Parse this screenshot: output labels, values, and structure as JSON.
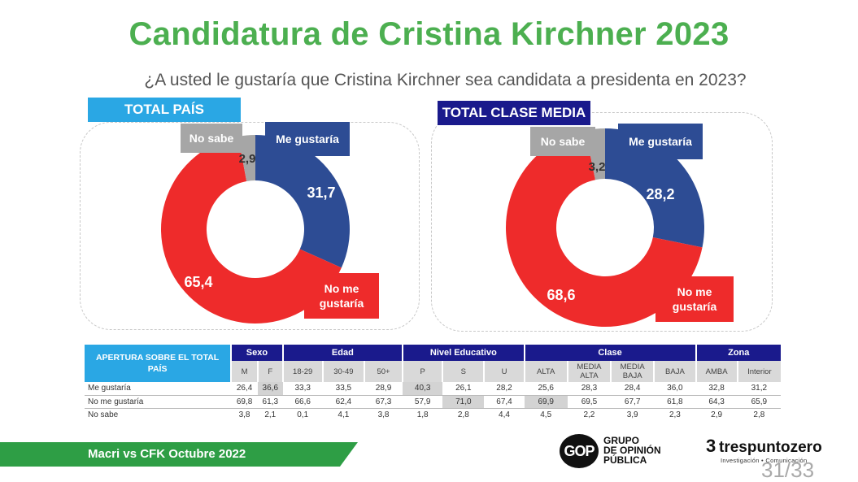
{
  "title": "Candidatura de Cristina Kirchner 2023",
  "subtitle": "¿A usted le gustaría que Cristina Kirchner sea candidata a presidenta en 2023?",
  "colors": {
    "me_gustaria": "#2d4c94",
    "no_me_gustaria": "#ee2b2b",
    "no_sabe": "#a6a6a6",
    "title_green": "#4caf50",
    "light_blue": "#2aa7e4",
    "navy": "#1a1a8c"
  },
  "chart_data": [
    {
      "type": "pie",
      "title": "TOTAL PAÍS",
      "series": [
        {
          "name": "Me gustaría",
          "value": 31.7,
          "label": "31,7"
        },
        {
          "name": "No me gustaría",
          "value": 65.4,
          "label": "65,4"
        },
        {
          "name": "No sabe",
          "value": 2.9,
          "label": "2,9"
        }
      ]
    },
    {
      "type": "pie",
      "title": "TOTAL CLASE MEDIA",
      "series": [
        {
          "name": "Me gustaría",
          "value": 28.2,
          "label": "28,2"
        },
        {
          "name": "No me gustaría",
          "value": 68.6,
          "label": "68,6"
        },
        {
          "name": "No sabe",
          "value": 3.2,
          "label": "3,2"
        }
      ]
    },
    {
      "type": "table",
      "title": "APERTURA SOBRE EL TOTAL PAÍS",
      "groups": [
        {
          "name": "Sexo",
          "columns": [
            "M",
            "F"
          ]
        },
        {
          "name": "Edad",
          "columns": [
            "18-29",
            "30-49",
            "50+"
          ]
        },
        {
          "name": "Nivel Educativo",
          "columns": [
            "P",
            "S",
            "U"
          ]
        },
        {
          "name": "Clase",
          "columns": [
            "ALTA",
            "MEDIA ALTA",
            "MEDIA BAJA",
            "BAJA"
          ]
        },
        {
          "name": "Zona",
          "columns": [
            "AMBA",
            "Interior"
          ]
        }
      ],
      "rows": [
        {
          "label": "Me gustaría",
          "values": [
            "26,4",
            "36,6",
            "33,3",
            "33,5",
            "28,9",
            "40,3",
            "26,1",
            "28,2",
            "25,6",
            "28,3",
            "28,4",
            "36,0",
            "32,8",
            "31,2"
          ],
          "highlight": [
            1,
            5
          ]
        },
        {
          "label": "No me gustaría",
          "values": [
            "69,8",
            "61,3",
            "66,6",
            "62,4",
            "67,3",
            "57,9",
            "71,0",
            "67,4",
            "69,9",
            "69,5",
            "67,7",
            "61,8",
            "64,3",
            "65,9"
          ],
          "highlight": [
            6,
            8
          ]
        },
        {
          "label": "No sabe",
          "values": [
            "3,8",
            "2,1",
            "0,1",
            "4,1",
            "3,8",
            "1,8",
            "2,8",
            "4,4",
            "4,5",
            "2,2",
            "3,9",
            "2,3",
            "2,9",
            "2,8"
          ],
          "highlight": []
        }
      ]
    }
  ],
  "footer": {
    "source": "Macri vs CFK Octubre 2022",
    "page": "31/33"
  },
  "logos": {
    "gop_mark": "GOP",
    "gop_text": [
      "GRUPO",
      "DE OPINIÓN",
      "PÚBLICA"
    ],
    "tpz_mark": "3",
    "tpz_name": "trespuntozero",
    "tpz_sub": "Investigación • Comunicación"
  }
}
